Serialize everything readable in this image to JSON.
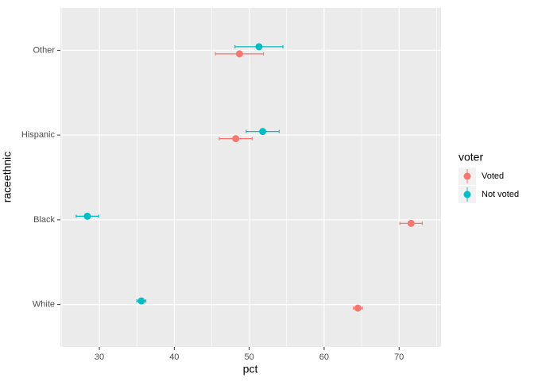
{
  "chart_data": {
    "type": "dot-errorbar",
    "x_label": "pct",
    "y_label": "raceethnic",
    "categories": [
      "White",
      "Black",
      "Hispanic",
      "Other"
    ],
    "series": [
      {
        "name": "Voted",
        "color": "#F8766D",
        "values": [
          64.5,
          71.6,
          48.2,
          48.7
        ],
        "errors": [
          0.6,
          1.5,
          2.2,
          3.2
        ]
      },
      {
        "name": "Not voted",
        "color": "#00BFC4",
        "values": [
          35.6,
          28.4,
          51.8,
          51.3
        ],
        "errors": [
          0.6,
          1.5,
          2.2,
          3.2
        ]
      }
    ],
    "xlim": [
      24.8,
      75.6
    ],
    "xticks": [
      30,
      40,
      50,
      60,
      70
    ],
    "legend_title": "voter",
    "legend_position": "right",
    "grid": true
  }
}
